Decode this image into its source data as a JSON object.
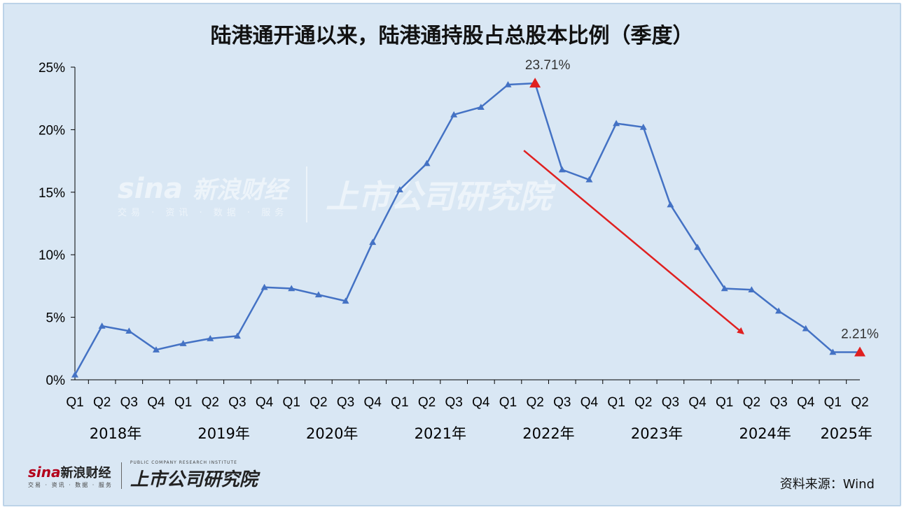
{
  "title": "陆港通开通以来，陆港通持股占总股本比例（季度）",
  "source": "资料来源：Wind",
  "logos": {
    "sina_mark": "sina",
    "sina_cn": "新浪财经",
    "sina_sub": "交易 · 资讯 · 数据 · 服务",
    "institute_cn": "上市公司研究院",
    "institute_en": "PUBLIC COMPANY RESEARCH INSTITUTE"
  },
  "colors": {
    "line": "#4472c4",
    "highlight": "#e02020",
    "background": "#d9e7f4"
  },
  "chart_data": {
    "type": "line",
    "title": "陆港通开通以来，陆港通持股占总股本比例（季度）",
    "xlabel": "",
    "ylabel": "",
    "ylim": [
      0,
      25
    ],
    "y_ticks": [
      "0%",
      "5%",
      "10%",
      "15%",
      "20%",
      "25%"
    ],
    "grid": false,
    "categories": [
      "Q1",
      "Q2",
      "Q3",
      "Q4",
      "Q1",
      "Q2",
      "Q3",
      "Q4",
      "Q1",
      "Q2",
      "Q3",
      "Q4",
      "Q1",
      "Q2",
      "Q3",
      "Q4",
      "Q1",
      "Q2",
      "Q3",
      "Q4",
      "Q1",
      "Q2",
      "Q3",
      "Q4",
      "Q1",
      "Q2",
      "Q3",
      "Q4",
      "Q1",
      "Q2"
    ],
    "years": [
      {
        "label": "2018年",
        "start": 0,
        "count": 4
      },
      {
        "label": "2019年",
        "start": 4,
        "count": 4
      },
      {
        "label": "2020年",
        "start": 8,
        "count": 4
      },
      {
        "label": "2021年",
        "start": 12,
        "count": 4
      },
      {
        "label": "2022年",
        "start": 16,
        "count": 4
      },
      {
        "label": "2023年",
        "start": 20,
        "count": 4
      },
      {
        "label": "2024年",
        "start": 24,
        "count": 4
      },
      {
        "label": "2025年",
        "start": 28,
        "count": 2
      }
    ],
    "values": [
      0.4,
      4.3,
      3.9,
      2.4,
      2.9,
      3.3,
      3.5,
      7.4,
      7.3,
      6.8,
      6.3,
      11.0,
      15.2,
      17.3,
      21.2,
      21.8,
      23.6,
      23.71,
      16.8,
      16.0,
      20.5,
      20.2,
      14.0,
      10.6,
      7.3,
      7.2,
      5.5,
      4.1,
      2.21,
      2.21
    ],
    "annotations": [
      {
        "index": 17,
        "text": "23.71%"
      },
      {
        "index": 29,
        "text": "2.21%"
      }
    ],
    "trend_arrow": {
      "from": [
        17,
        18.5
      ],
      "to": [
        25,
        3.7
      ]
    }
  }
}
